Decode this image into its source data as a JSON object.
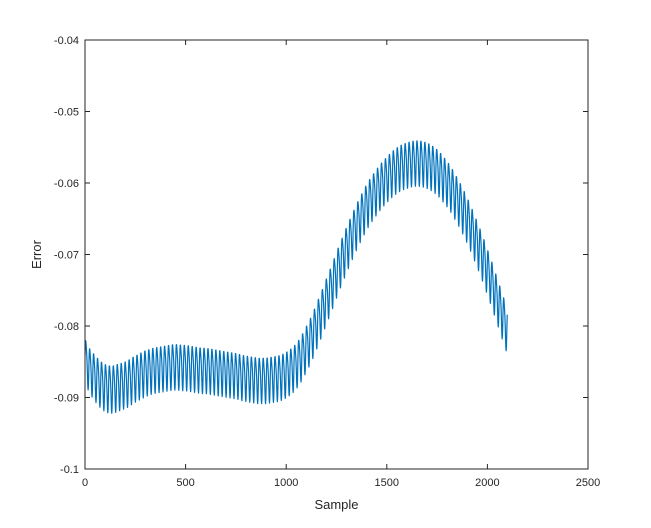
{
  "chart_data": {
    "type": "line",
    "title": "",
    "xlabel": "Sample",
    "ylabel": "Error",
    "xlim": [
      0,
      2500
    ],
    "ylim": [
      -0.1,
      -0.04
    ],
    "xticks": [
      0,
      500,
      1000,
      1500,
      2000,
      2500
    ],
    "xtick_labels": [
      "0",
      "500",
      "1000",
      "1500",
      "2000",
      "2500"
    ],
    "yticks": [
      -0.1,
      -0.09,
      -0.08,
      -0.07,
      -0.06,
      -0.05,
      -0.04
    ],
    "ytick_labels": [
      "-0.1",
      "-0.09",
      "-0.08",
      "-0.07",
      "-0.06",
      "-0.05",
      "-0.04"
    ],
    "grid": false,
    "line_color": "#0072BD",
    "series": [
      {
        "x": [
          0,
          20,
          40,
          60,
          80,
          100,
          120,
          140,
          160,
          180,
          200,
          220,
          240,
          260,
          280,
          300,
          320,
          340,
          360,
          380,
          400,
          420,
          440,
          460,
          480,
          500,
          520,
          540,
          560,
          580,
          600,
          620,
          640,
          660,
          680,
          700,
          720,
          740,
          760,
          780,
          800,
          820,
          840,
          860,
          880,
          900,
          920,
          940,
          960,
          980,
          1000,
          1020,
          1040,
          1060,
          1080,
          1100,
          1120,
          1140,
          1160,
          1180,
          1200,
          1220,
          1240,
          1260,
          1280,
          1300,
          1320,
          1340,
          1360,
          1380,
          1400,
          1420,
          1440,
          1460,
          1480,
          1500,
          1520,
          1540,
          1560,
          1580,
          1600,
          1620,
          1640,
          1660,
          1680,
          1700,
          1720,
          1740,
          1760,
          1780,
          1800,
          1820,
          1840,
          1860,
          1880,
          1900,
          1920,
          1940,
          1960,
          1980,
          2000,
          2020,
          2040,
          2060,
          2080,
          2100
        ],
        "y": [
          -0.0845,
          -0.0858,
          -0.0866,
          -0.0873,
          -0.0879,
          -0.0883,
          -0.0885,
          -0.0885,
          -0.0883,
          -0.0881,
          -0.0879,
          -0.0876,
          -0.0872,
          -0.0869,
          -0.0866,
          -0.0863,
          -0.0861,
          -0.0859,
          -0.0858,
          -0.0857,
          -0.0856,
          -0.0855,
          -0.0854,
          -0.0854,
          -0.0855,
          -0.0855,
          -0.0856,
          -0.0857,
          -0.0858,
          -0.0859,
          -0.0859,
          -0.086,
          -0.0861,
          -0.0862,
          -0.0863,
          -0.0864,
          -0.0865,
          -0.0866,
          -0.0867,
          -0.0869,
          -0.087,
          -0.0871,
          -0.0872,
          -0.0873,
          -0.0873,
          -0.0873,
          -0.0872,
          -0.0871,
          -0.087,
          -0.0868,
          -0.0865,
          -0.0861,
          -0.0856,
          -0.0849,
          -0.084,
          -0.0829,
          -0.0818,
          -0.0805,
          -0.0791,
          -0.0777,
          -0.0762,
          -0.0748,
          -0.0733,
          -0.0718,
          -0.0704,
          -0.069,
          -0.0677,
          -0.0664,
          -0.0652,
          -0.0641,
          -0.063,
          -0.0621,
          -0.0613,
          -0.0605,
          -0.0598,
          -0.0592,
          -0.0586,
          -0.0581,
          -0.0577,
          -0.0574,
          -0.0572,
          -0.057,
          -0.0569,
          -0.0569,
          -0.057,
          -0.0572,
          -0.0575,
          -0.0579,
          -0.0584,
          -0.0591,
          -0.0598,
          -0.0606,
          -0.0616,
          -0.0626,
          -0.0637,
          -0.0649,
          -0.0662,
          -0.0676,
          -0.069,
          -0.0705,
          -0.0721,
          -0.0737,
          -0.0754,
          -0.0771,
          -0.0788,
          -0.0805
        ],
        "oscillation_amplitude": [
          0.007,
          0.0072,
          0.0074,
          0.0075,
          0.0076,
          0.0077,
          0.0077,
          0.0077,
          0.0077,
          0.0076,
          0.0076,
          0.0076,
          0.0075,
          0.0075,
          0.0075,
          0.0075,
          0.0074,
          0.0074,
          0.0074,
          0.0074,
          0.0074,
          0.0074,
          0.0074,
          0.0074,
          0.0074,
          0.0074,
          0.0074,
          0.0074,
          0.0074,
          0.0074,
          0.0074,
          0.0074,
          0.0074,
          0.0074,
          0.0074,
          0.0074,
          0.0074,
          0.0074,
          0.0074,
          0.0074,
          0.0074,
          0.0074,
          0.0074,
          0.0074,
          0.0074,
          0.0074,
          0.0074,
          0.0074,
          0.0074,
          0.0074,
          0.0074,
          0.0074,
          0.0074,
          0.0074,
          0.0074,
          0.0074,
          0.0074,
          0.0074,
          0.0074,
          0.0074,
          0.0074,
          0.0074,
          0.0074,
          0.0074,
          0.0074,
          0.0074,
          0.0074,
          0.0074,
          0.0074,
          0.0074,
          0.0074,
          0.0074,
          0.0074,
          0.0074,
          0.0074,
          0.0074,
          0.0074,
          0.0074,
          0.0074,
          0.0074,
          0.0074,
          0.0074,
          0.0074,
          0.0074,
          0.0074,
          0.0074,
          0.0074,
          0.0074,
          0.0074,
          0.0074,
          0.0074,
          0.0074,
          0.0074,
          0.0074,
          0.0074,
          0.0074,
          0.0074,
          0.0074,
          0.0074,
          0.0074,
          0.0074,
          0.0074,
          0.0074,
          0.0074,
          0.0074,
          0.0074
        ]
      }
    ]
  }
}
